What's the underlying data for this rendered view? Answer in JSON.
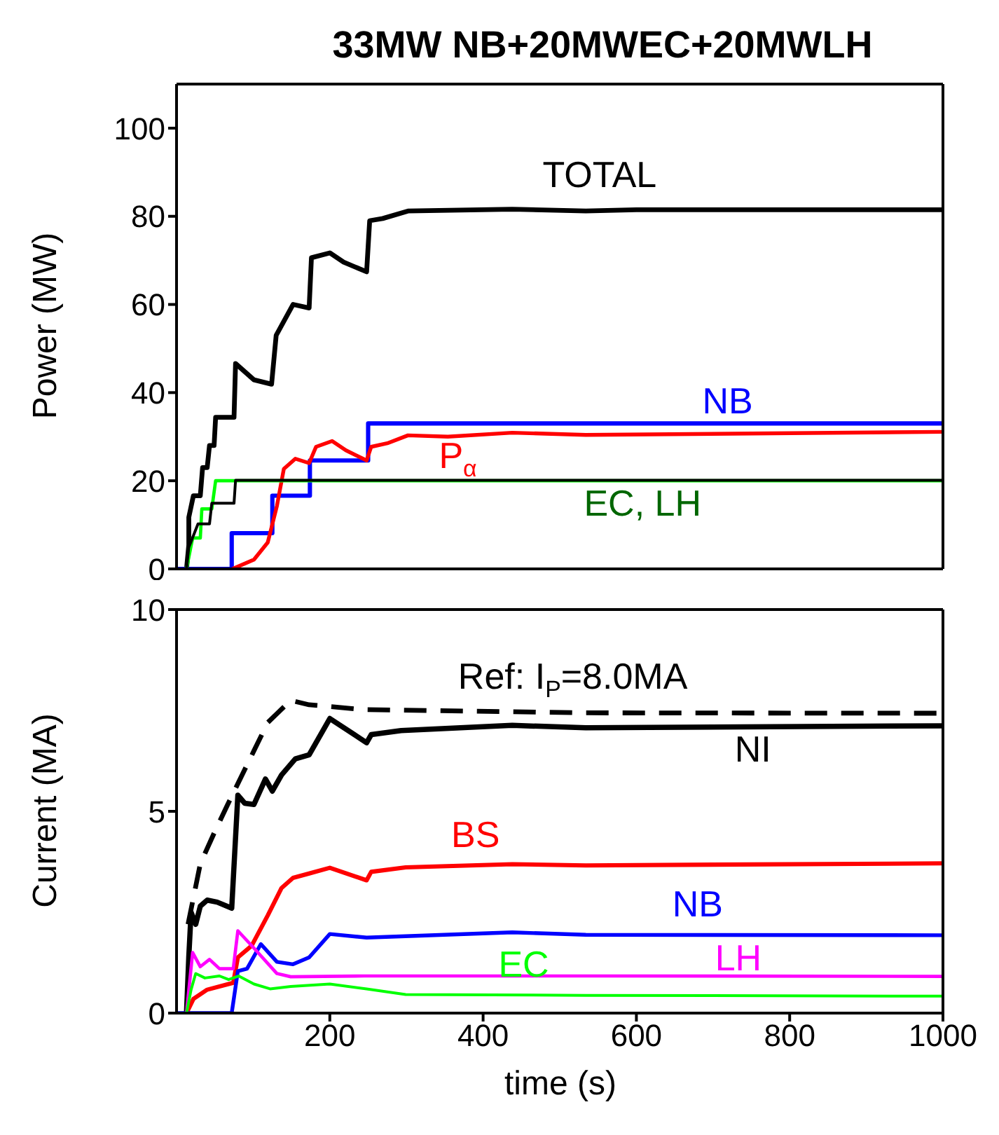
{
  "chart_data": [
    {
      "type": "line",
      "title": "33MW NB+20MWEC+20MWLH",
      "ylabel": "Power (MW)",
      "xlim": [
        0,
        1000
      ],
      "xticks": [
        200,
        400,
        600,
        800,
        1000
      ],
      "ylim": [
        0,
        110
      ],
      "yticks": [
        0,
        20,
        40,
        60,
        80,
        100
      ],
      "tick_labels": "y",
      "marker": "none",
      "series": [
        {
          "name": "TOTAL",
          "color": "#000000",
          "x": [
            13,
            16,
            16,
            22,
            31,
            34,
            40,
            43,
            49,
            51,
            75,
            77,
            101,
            124,
            130,
            152,
            173,
            176,
            200,
            218,
            248,
            252,
            269,
            302,
            438,
            534,
            600,
            1000
          ],
          "values": [
            0,
            5.4,
            11.7,
            16.6,
            16.6,
            23,
            23,
            28,
            28,
            34.4,
            34.4,
            46.6,
            42.9,
            41.9,
            53,
            60,
            59.2,
            70.6,
            71.7,
            69.6,
            67.4,
            79,
            79.5,
            81.2,
            81.6,
            81.2,
            81.5,
            81.5
          ]
        },
        {
          "name": "NB",
          "color": "#0000ff",
          "x": [
            0,
            72,
            72,
            125,
            125,
            174,
            174,
            250,
            250,
            1000
          ],
          "values": [
            0,
            0,
            8.1,
            8.1,
            16.6,
            16.6,
            24.6,
            24.6,
            33,
            33
          ]
        },
        {
          "name": "P$_{α}$",
          "color": "#ff0000",
          "x": [
            73,
            101,
            119,
            131,
            140,
            155,
            173,
            182,
            203,
            221,
            248,
            254,
            275,
            302,
            354,
            438,
            534,
            1000
          ],
          "values": [
            0,
            2.1,
            6,
            14.3,
            22.7,
            25,
            24,
            27.7,
            29,
            26.9,
            24.6,
            27.7,
            28.5,
            30.3,
            30,
            30.9,
            30.4,
            31.1
          ]
        },
        {
          "color": "#00ff00",
          "x": [
            13,
            21,
            21,
            31,
            33,
            46,
            51,
            1000
          ],
          "values": [
            0,
            7,
            7,
            7,
            13.6,
            13.6,
            20,
            20
          ]
        },
        {
          "color": "#000000",
          "x": [
            13,
            16,
            28,
            43,
            46,
            75,
            77,
            1000
          ],
          "values": [
            0,
            4.9,
            10.2,
            10.2,
            14.9,
            14.9,
            20.1,
            20.1
          ]
        }
      ],
      "annotations": [
        "EC, LH"
      ]
    },
    {
      "type": "line",
      "xlabel": "time (s)",
      "ylabel": "Current (MA)",
      "xlim": [
        0,
        1000
      ],
      "xticks": [
        200,
        400,
        600,
        800,
        1000
      ],
      "ylim": [
        0,
        10
      ],
      "yticks": [
        0,
        5,
        10
      ],
      "marker": "none",
      "series": [
        {
          "name": "NI",
          "color": "#000000",
          "x": [
            13,
            16,
            19,
            25,
            31,
            40,
            53,
            72,
            80,
            89,
            101,
            116,
            125,
            137,
            155,
            173,
            185,
            200,
            248,
            254,
            293,
            438,
            534,
            1000
          ],
          "values": [
            0,
            1.4,
            2.5,
            2.2,
            2.65,
            2.8,
            2.75,
            2.6,
            5.4,
            5.2,
            5.17,
            5.8,
            5.5,
            5.9,
            6.3,
            6.4,
            6.8,
            7.3,
            6.7,
            6.9,
            7,
            7.13,
            7.07,
            7.12
          ]
        },
        {
          "name": "Ref: I$_{P}$=8.0MA",
          "color": "#000000",
          "line_style": "dashed",
          "x": [
            15,
            31,
            50,
            65,
            101,
            119,
            149,
            173,
            245,
            534,
            1000
          ],
          "values": [
            2.2,
            3.7,
            4.5,
            5.1,
            6.5,
            7.2,
            7.75,
            7.64,
            7.52,
            7.44,
            7.43
          ]
        },
        {
          "name": "BS",
          "color": "#ff0000",
          "x": [
            13,
            22,
            40,
            74,
            80,
            98,
            119,
            137,
            152,
            173,
            200,
            248,
            254,
            299,
            438,
            534,
            1000
          ],
          "values": [
            0,
            0.35,
            0.58,
            0.75,
            1.38,
            1.67,
            2.42,
            3.1,
            3.35,
            3.46,
            3.6,
            3.29,
            3.5,
            3.61,
            3.69,
            3.66,
            3.71
          ]
        },
        {
          "name": "NB",
          "color": "#0000ff",
          "x": [
            0,
            72,
            80,
            92,
            110,
            131,
            152,
            173,
            200,
            248,
            438,
            534,
            1000
          ],
          "values": [
            0,
            0,
            1.04,
            1.1,
            1.71,
            1.27,
            1.21,
            1.38,
            1.96,
            1.87,
            2,
            1.94,
            1.93
          ]
        },
        {
          "name": "LH",
          "color": "#ff00ff",
          "x": [
            13,
            21,
            31,
            43,
            56,
            74,
            80,
            101,
            131,
            149,
            245,
            534,
            1000
          ],
          "values": [
            0,
            1.5,
            1.15,
            1.33,
            1.1,
            1.1,
            2.04,
            1.61,
            0.98,
            0.9,
            0.92,
            0.92,
            0.91
          ]
        },
        {
          "name": "EC",
          "color": "#00ff00",
          "x": [
            13,
            19,
            25,
            37,
            56,
            68,
            81,
            101,
            122,
            149,
            200,
            248,
            299,
            534,
            1000
          ],
          "values": [
            0,
            0.58,
            0.98,
            0.87,
            0.92,
            0.83,
            0.92,
            0.72,
            0.6,
            0.66,
            0.72,
            0.6,
            0.46,
            0.44,
            0.42
          ]
        }
      ]
    }
  ]
}
